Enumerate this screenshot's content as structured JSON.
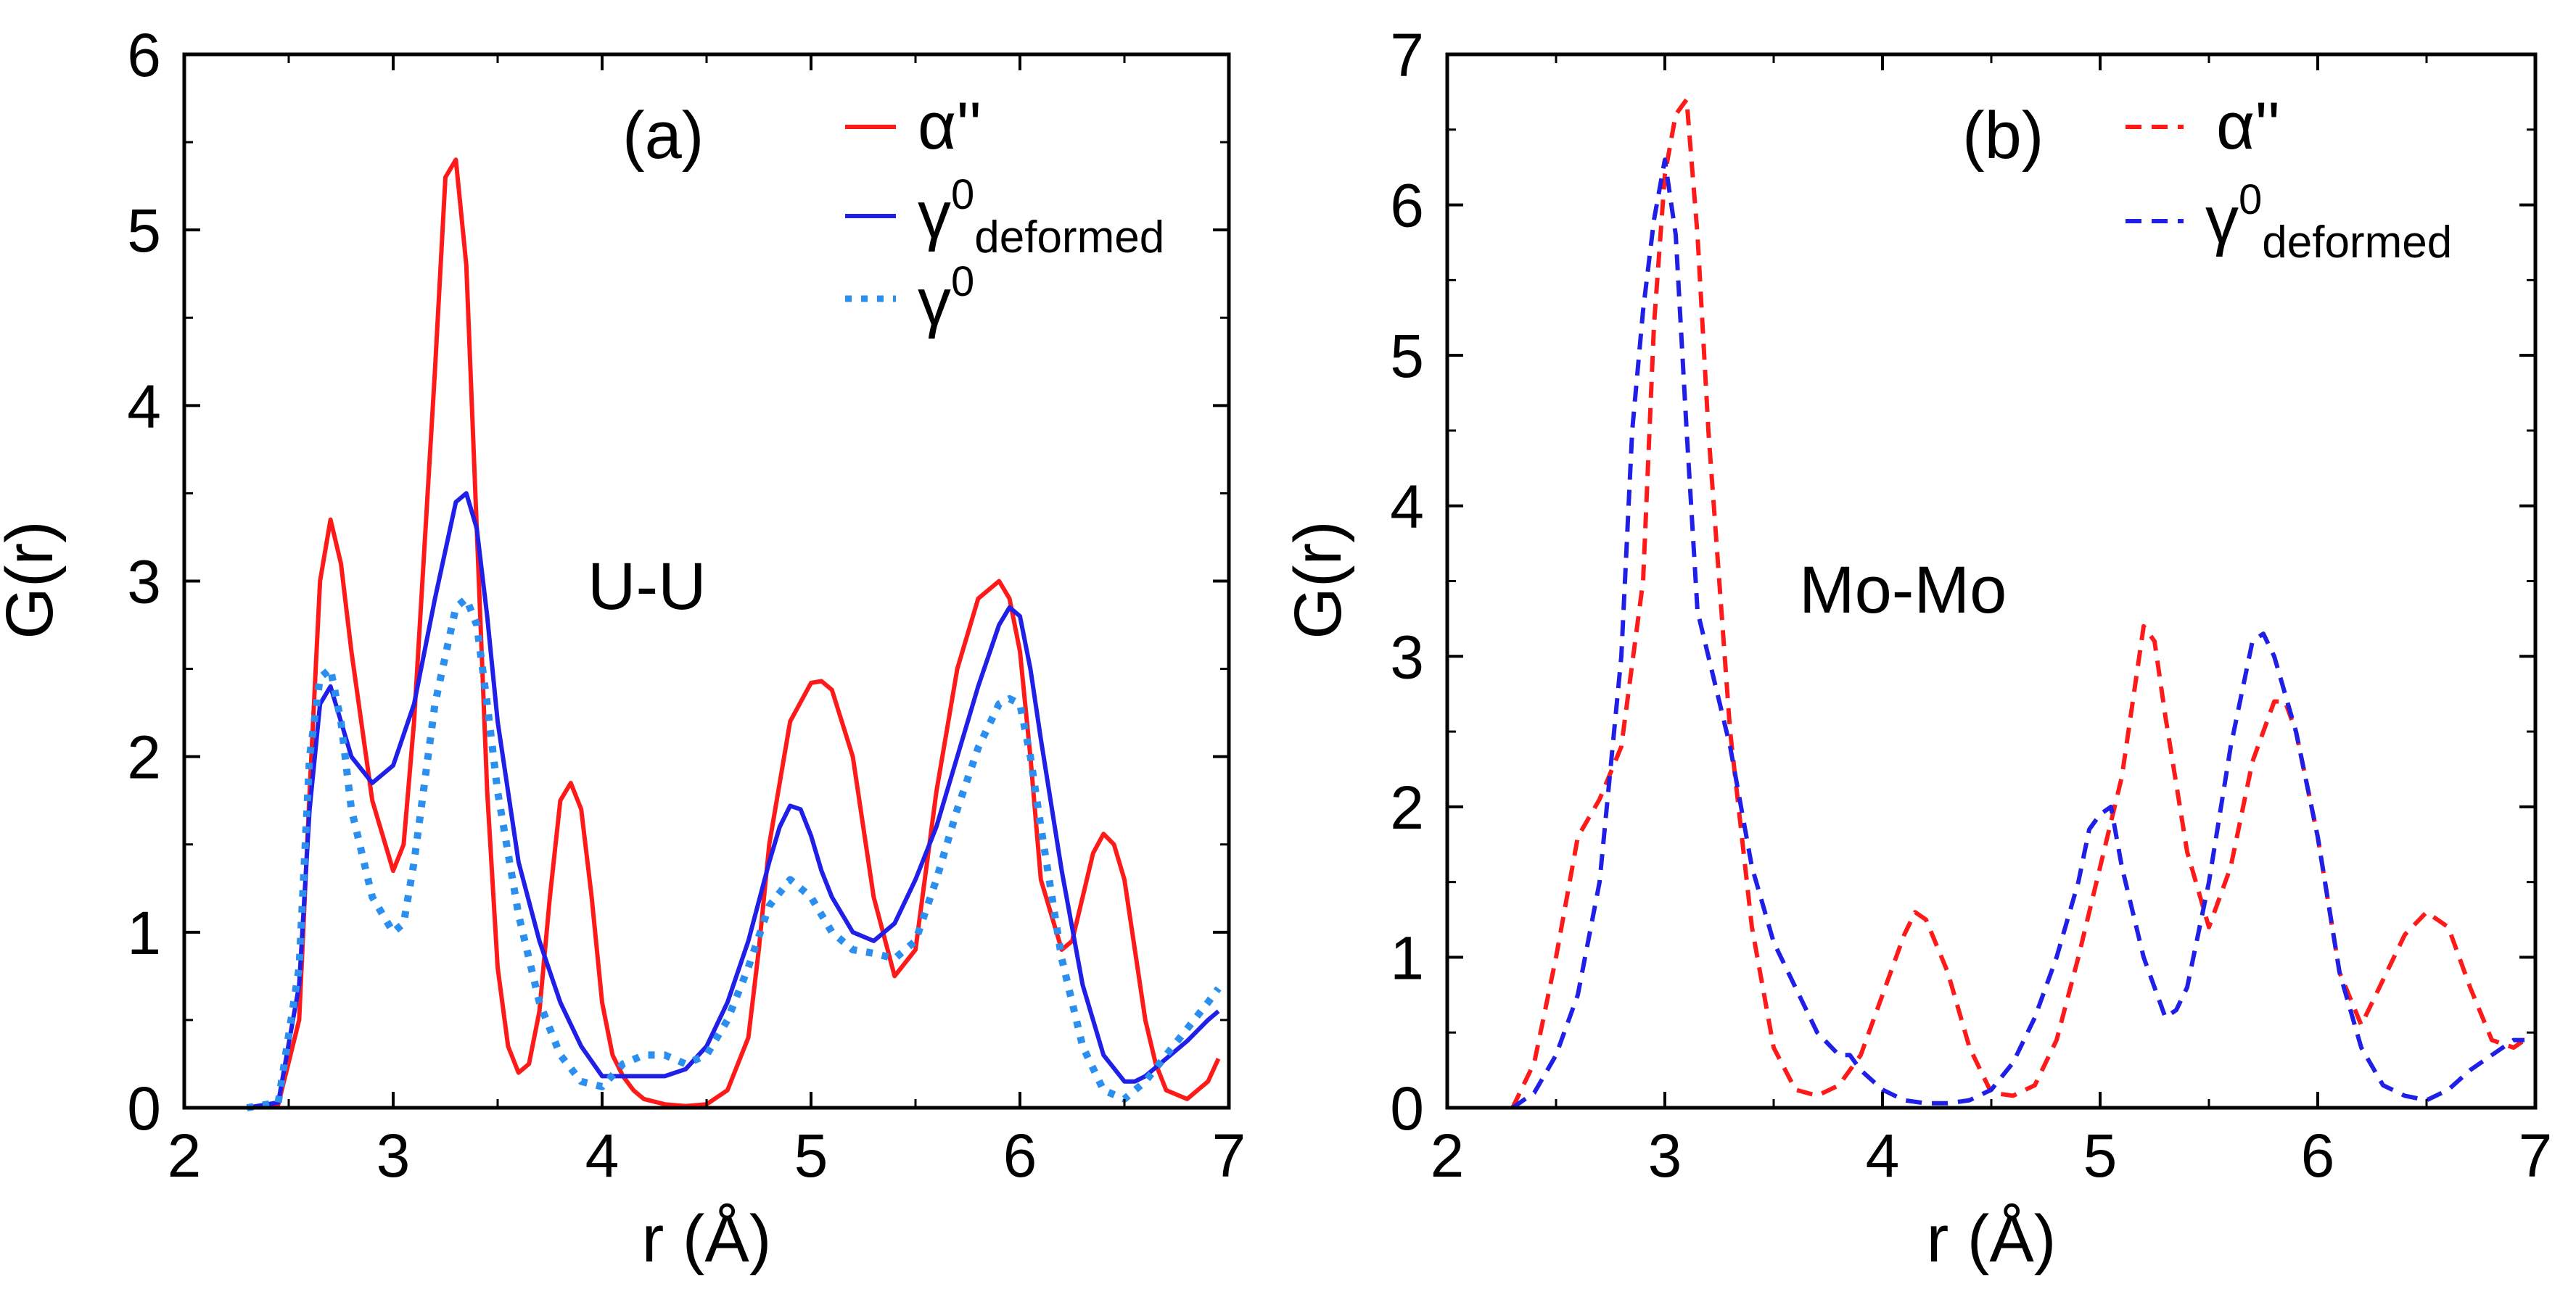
{
  "colors": {
    "red": "#ff1a1a",
    "blue": "#1f1fe8",
    "lightblue": "#2b8ff0",
    "axis": "#000000"
  },
  "chart_data": [
    {
      "type": "line",
      "panel_label": "(a)",
      "pair_label": "U-U",
      "xlabel": "r (Å)",
      "ylabel": "G(r)",
      "xlim": [
        2,
        7
      ],
      "ylim": [
        0,
        6
      ],
      "xticks": [
        2,
        3,
        4,
        5,
        6,
        7
      ],
      "yticks": [
        0,
        1,
        2,
        3,
        4,
        5,
        6
      ],
      "legend_position": "top-right",
      "series": [
        {
          "key": "alpha",
          "name": "α''",
          "legend_main": "α''",
          "legend_sup": "",
          "legend_sub": "",
          "color": "#ff1a1a",
          "style": "solid",
          "x": [
            2.3,
            2.45,
            2.55,
            2.6,
            2.65,
            2.7,
            2.75,
            2.8,
            2.9,
            3.0,
            3.05,
            3.1,
            3.2,
            3.25,
            3.3,
            3.35,
            3.4,
            3.45,
            3.5,
            3.55,
            3.6,
            3.65,
            3.7,
            3.75,
            3.8,
            3.85,
            3.9,
            3.95,
            4.0,
            4.05,
            4.1,
            4.15,
            4.2,
            4.3,
            4.4,
            4.5,
            4.6,
            4.7,
            4.75,
            4.8,
            4.9,
            5.0,
            5.05,
            5.1,
            5.2,
            5.25,
            5.3,
            5.4,
            5.5,
            5.6,
            5.7,
            5.8,
            5.9,
            5.95,
            6.0,
            6.05,
            6.1,
            6.2,
            6.25,
            6.3,
            6.35,
            6.4,
            6.45,
            6.5,
            6.55,
            6.6,
            6.65,
            6.7,
            6.8,
            6.9,
            6.95
          ],
          "y": [
            0.0,
            0.02,
            0.5,
            1.8,
            3.0,
            3.35,
            3.1,
            2.6,
            1.75,
            1.35,
            1.5,
            2.2,
            4.2,
            5.3,
            5.4,
            4.8,
            3.3,
            1.8,
            0.8,
            0.35,
            0.2,
            0.25,
            0.55,
            1.2,
            1.75,
            1.85,
            1.7,
            1.2,
            0.6,
            0.3,
            0.18,
            0.1,
            0.05,
            0.02,
            0.01,
            0.02,
            0.1,
            0.4,
            0.9,
            1.5,
            2.2,
            2.42,
            2.43,
            2.38,
            2.0,
            1.6,
            1.2,
            0.75,
            0.9,
            1.8,
            2.5,
            2.9,
            3.0,
            2.9,
            2.6,
            2.0,
            1.3,
            0.9,
            0.95,
            1.2,
            1.45,
            1.56,
            1.5,
            1.3,
            0.9,
            0.5,
            0.25,
            0.1,
            0.05,
            0.15,
            0.28
          ]
        },
        {
          "key": "gamma_def",
          "name": "γ0deformed",
          "legend_main": "γ",
          "legend_sup": "0",
          "legend_sub": "deformed",
          "color": "#1f1fe8",
          "style": "solid",
          "x": [
            2.3,
            2.45,
            2.55,
            2.6,
            2.65,
            2.7,
            2.75,
            2.8,
            2.9,
            3.0,
            3.1,
            3.2,
            3.3,
            3.35,
            3.4,
            3.45,
            3.5,
            3.55,
            3.6,
            3.7,
            3.8,
            3.9,
            4.0,
            4.1,
            4.2,
            4.3,
            4.4,
            4.5,
            4.6,
            4.7,
            4.8,
            4.85,
            4.9,
            4.95,
            5.0,
            5.05,
            5.1,
            5.2,
            5.3,
            5.4,
            5.5,
            5.6,
            5.7,
            5.8,
            5.9,
            5.95,
            6.0,
            6.05,
            6.1,
            6.2,
            6.3,
            6.4,
            6.5,
            6.55,
            6.6,
            6.7,
            6.8,
            6.9,
            6.95
          ],
          "y": [
            0.0,
            0.03,
            0.7,
            1.7,
            2.3,
            2.4,
            2.2,
            2.0,
            1.85,
            1.95,
            2.3,
            2.9,
            3.45,
            3.5,
            3.3,
            2.8,
            2.2,
            1.8,
            1.4,
            0.95,
            0.6,
            0.35,
            0.18,
            0.18,
            0.18,
            0.18,
            0.22,
            0.35,
            0.6,
            0.95,
            1.4,
            1.6,
            1.72,
            1.7,
            1.55,
            1.35,
            1.2,
            1.0,
            0.95,
            1.05,
            1.3,
            1.6,
            2.0,
            2.4,
            2.75,
            2.85,
            2.8,
            2.5,
            2.1,
            1.35,
            0.7,
            0.3,
            0.15,
            0.15,
            0.18,
            0.28,
            0.38,
            0.5,
            0.55
          ]
        },
        {
          "key": "gamma",
          "name": "γ0",
          "legend_main": "γ",
          "legend_sup": "0",
          "legend_sub": "",
          "color": "#2b8ff0",
          "style": "dotted",
          "x": [
            2.3,
            2.45,
            2.55,
            2.6,
            2.65,
            2.7,
            2.75,
            2.8,
            2.9,
            3.0,
            3.05,
            3.1,
            3.2,
            3.3,
            3.35,
            3.4,
            3.45,
            3.5,
            3.6,
            3.7,
            3.8,
            3.9,
            4.0,
            4.1,
            4.2,
            4.3,
            4.4,
            4.5,
            4.6,
            4.7,
            4.8,
            4.9,
            5.0,
            5.1,
            5.2,
            5.3,
            5.4,
            5.5,
            5.6,
            5.7,
            5.8,
            5.9,
            5.95,
            6.0,
            6.05,
            6.1,
            6.2,
            6.3,
            6.4,
            6.5,
            6.6,
            6.7,
            6.8,
            6.9,
            6.95
          ],
          "y": [
            0.0,
            0.03,
            0.8,
            2.0,
            2.45,
            2.5,
            2.2,
            1.7,
            1.2,
            1.0,
            1.05,
            1.4,
            2.3,
            2.85,
            2.9,
            2.75,
            2.3,
            1.8,
            1.1,
            0.6,
            0.3,
            0.15,
            0.12,
            0.25,
            0.3,
            0.3,
            0.25,
            0.3,
            0.5,
            0.8,
            1.15,
            1.3,
            1.2,
            1.0,
            0.9,
            0.88,
            0.85,
            0.95,
            1.3,
            1.7,
            2.05,
            2.3,
            2.33,
            2.3,
            2.0,
            1.6,
            0.85,
            0.35,
            0.1,
            0.05,
            0.15,
            0.3,
            0.45,
            0.6,
            0.68
          ]
        }
      ]
    },
    {
      "type": "line",
      "panel_label": "(b)",
      "pair_label": "Mo-Mo",
      "xlabel": "r (Å)",
      "ylabel": "G(r)",
      "xlim": [
        2,
        7
      ],
      "ylim": [
        0,
        7
      ],
      "xticks": [
        2,
        3,
        4,
        5,
        6,
        7
      ],
      "yticks": [
        0,
        1,
        2,
        3,
        4,
        5,
        6,
        7
      ],
      "legend_position": "top-right",
      "series": [
        {
          "key": "alpha",
          "name": "α''",
          "legend_main": "α''",
          "legend_sup": "",
          "legend_sub": "",
          "color": "#ff1a1a",
          "style": "dashed",
          "x": [
            2.3,
            2.4,
            2.5,
            2.6,
            2.7,
            2.8,
            2.9,
            2.95,
            3.0,
            3.05,
            3.1,
            3.15,
            3.2,
            3.3,
            3.4,
            3.5,
            3.6,
            3.7,
            3.8,
            3.9,
            4.0,
            4.1,
            4.15,
            4.2,
            4.3,
            4.4,
            4.5,
            4.6,
            4.7,
            4.8,
            4.9,
            5.0,
            5.1,
            5.15,
            5.2,
            5.25,
            5.3,
            5.4,
            5.5,
            5.6,
            5.7,
            5.8,
            5.85,
            5.9,
            6.0,
            6.1,
            6.2,
            6.3,
            6.4,
            6.5,
            6.6,
            6.7,
            6.8,
            6.9,
            6.95
          ],
          "y": [
            0.0,
            0.3,
            1.0,
            1.8,
            2.05,
            2.4,
            3.5,
            5.2,
            6.2,
            6.6,
            6.7,
            5.8,
            4.5,
            2.5,
            1.2,
            0.4,
            0.12,
            0.08,
            0.15,
            0.35,
            0.75,
            1.15,
            1.3,
            1.25,
            0.9,
            0.4,
            0.1,
            0.08,
            0.15,
            0.45,
            1.0,
            1.6,
            2.2,
            2.7,
            3.2,
            3.1,
            2.6,
            1.7,
            1.2,
            1.6,
            2.3,
            2.7,
            2.7,
            2.5,
            1.8,
            0.9,
            0.55,
            0.85,
            1.15,
            1.3,
            1.2,
            0.8,
            0.45,
            0.4,
            0.45
          ]
        },
        {
          "key": "gamma_def",
          "name": "γ0deformed",
          "legend_main": "γ",
          "legend_sup": "0",
          "legend_sub": "deformed",
          "color": "#1f1fe8",
          "style": "dashed",
          "x": [
            2.3,
            2.4,
            2.5,
            2.6,
            2.7,
            2.8,
            2.85,
            2.9,
            2.95,
            3.0,
            3.05,
            3.1,
            3.15,
            3.2,
            3.3,
            3.4,
            3.5,
            3.6,
            3.7,
            3.8,
            3.85,
            3.9,
            4.0,
            4.1,
            4.2,
            4.3,
            4.4,
            4.5,
            4.6,
            4.7,
            4.8,
            4.9,
            4.95,
            5.0,
            5.05,
            5.1,
            5.2,
            5.3,
            5.35,
            5.4,
            5.5,
            5.6,
            5.7,
            5.75,
            5.8,
            5.9,
            6.0,
            6.1,
            6.2,
            6.3,
            6.4,
            6.5,
            6.6,
            6.7,
            6.8,
            6.9,
            6.95
          ],
          "y": [
            0.0,
            0.1,
            0.35,
            0.75,
            1.5,
            3.0,
            4.5,
            5.3,
            5.9,
            6.3,
            5.8,
            4.5,
            3.3,
            3.0,
            2.4,
            1.6,
            1.1,
            0.8,
            0.5,
            0.35,
            0.35,
            0.25,
            0.12,
            0.05,
            0.03,
            0.03,
            0.05,
            0.12,
            0.3,
            0.6,
            1.0,
            1.5,
            1.85,
            1.95,
            2.0,
            1.6,
            1.0,
            0.6,
            0.65,
            0.8,
            1.5,
            2.4,
            3.1,
            3.15,
            3.0,
            2.5,
            1.8,
            0.9,
            0.4,
            0.15,
            0.08,
            0.05,
            0.12,
            0.25,
            0.35,
            0.45,
            0.45
          ]
        }
      ]
    }
  ]
}
